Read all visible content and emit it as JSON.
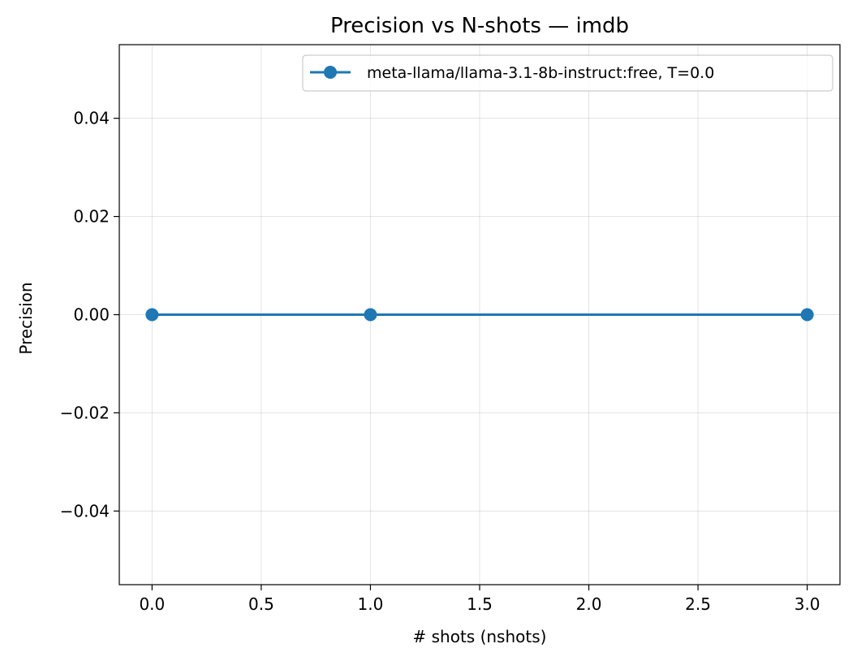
{
  "chart_data": {
    "type": "line",
    "title": "Precision vs N-shots — imdb",
    "xlabel": "# shots (nshots)",
    "ylabel": "Precision",
    "xlim": [
      -0.15,
      3.15
    ],
    "ylim": [
      -0.055,
      0.055
    ],
    "xticks": [
      0.0,
      0.5,
      1.0,
      1.5,
      2.0,
      2.5,
      3.0
    ],
    "xtick_labels": [
      "0.0",
      "0.5",
      "1.0",
      "1.5",
      "2.0",
      "2.5",
      "3.0"
    ],
    "yticks": [
      -0.04,
      -0.02,
      0.0,
      0.02,
      0.04
    ],
    "ytick_labels": [
      "−0.04",
      "−0.02",
      "0.00",
      "0.02",
      "0.04"
    ],
    "grid": true,
    "legend_position": "top-right",
    "series": [
      {
        "name": "meta-llama/llama-3.1-8b-instruct:free, T=0.0",
        "color": "#1f77b4",
        "marker": "circle",
        "x": [
          0,
          1,
          3
        ],
        "y": [
          0.0,
          0.0,
          0.0
        ]
      }
    ]
  }
}
